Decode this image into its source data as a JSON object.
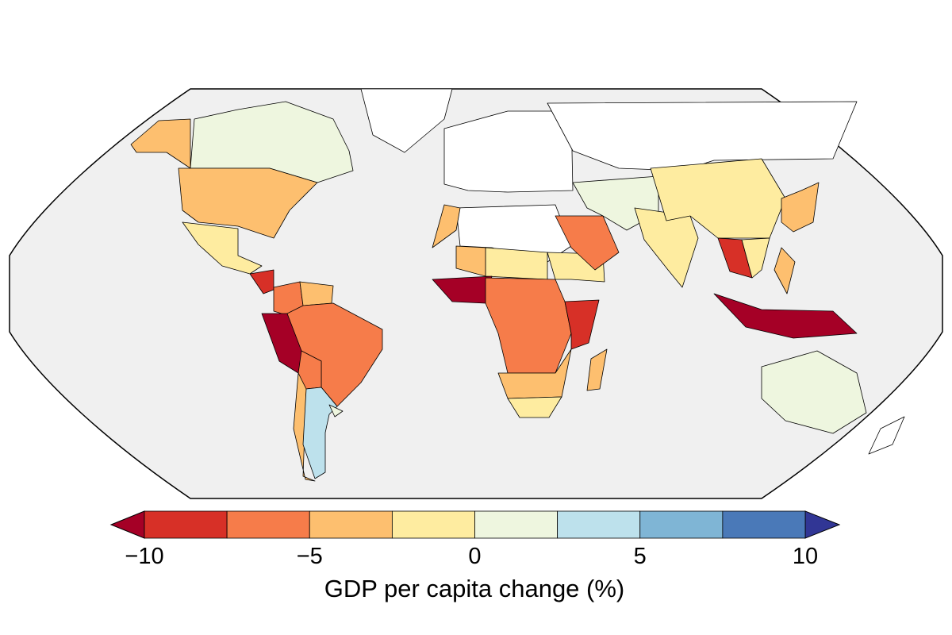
{
  "map": {
    "projection": "Robinson",
    "ocean_color": "#f0f0f0",
    "no_data_color": "#ffffff",
    "regions": [
      {
        "name": "Canada",
        "value": 1.25
      },
      {
        "name": "Alaska",
        "value": -3.75
      },
      {
        "name": "United States",
        "value": -3.75
      },
      {
        "name": "Mexico",
        "value": -1.25
      },
      {
        "name": "Central America",
        "value": -8.75
      },
      {
        "name": "Colombia",
        "value": -6.25
      },
      {
        "name": "Venezuela",
        "value": -3.75
      },
      {
        "name": "Peru & Ecuador",
        "value": -12
      },
      {
        "name": "Brazil",
        "value": -6.25
      },
      {
        "name": "Bolivia & Paraguay",
        "value": -6.25
      },
      {
        "name": "Chile",
        "value": -3.75
      },
      {
        "name": "Argentina",
        "value": 3.75
      },
      {
        "name": "Uruguay",
        "value": 1.25
      },
      {
        "name": "Greenland",
        "value": null
      },
      {
        "name": "Europe",
        "value": null
      },
      {
        "name": "Russia",
        "value": null
      },
      {
        "name": "North Africa",
        "value": null
      },
      {
        "name": "Morocco",
        "value": -3.75
      },
      {
        "name": "Sahel",
        "value": -1.25
      },
      {
        "name": "Mali",
        "value": -3.75
      },
      {
        "name": "West Africa coast",
        "value": -12
      },
      {
        "name": "Central Africa",
        "value": -6.25
      },
      {
        "name": "Sudan & Ethiopia",
        "value": -1.25
      },
      {
        "name": "East Africa",
        "value": -8.75
      },
      {
        "name": "Southern Africa",
        "value": -3.75
      },
      {
        "name": "South Africa",
        "value": -1.25
      },
      {
        "name": "Madagascar",
        "value": -3.75
      },
      {
        "name": "Saudi Arabia",
        "value": -6.25
      },
      {
        "name": "Iran & Central Asia",
        "value": 1.25
      },
      {
        "name": "India",
        "value": -1.25
      },
      {
        "name": "China",
        "value": -1.25
      },
      {
        "name": "Thailand & Cambodia",
        "value": -8.75
      },
      {
        "name": "Vietnam & Laos",
        "value": -1.25
      },
      {
        "name": "Indonesia & Malaysia",
        "value": -12
      },
      {
        "name": "Philippines",
        "value": -3.75
      },
      {
        "name": "Japan & Korea",
        "value": -3.75
      },
      {
        "name": "Australia",
        "value": 1.25
      },
      {
        "name": "New Zealand",
        "value": null
      }
    ]
  },
  "colorbar": {
    "label": "GDP per capita change (%)",
    "range": [
      -10,
      10
    ],
    "boundaries": [
      -10,
      -7.5,
      -5,
      -2.5,
      0,
      2.5,
      5,
      7.5,
      10
    ],
    "colors": [
      "#d73027",
      "#f67c4a",
      "#fdbf6f",
      "#feeca0",
      "#eef6df",
      "#bde1ec",
      "#7fb5d5",
      "#4a79b8"
    ],
    "under_color": "#a50026",
    "over_color": "#313695",
    "extend": "both",
    "ticks": [
      {
        "value": -10,
        "label": "−10"
      },
      {
        "value": -5,
        "label": "−5"
      },
      {
        "value": 0,
        "label": "0"
      },
      {
        "value": 5,
        "label": "5"
      },
      {
        "value": 10,
        "label": "10"
      }
    ]
  }
}
